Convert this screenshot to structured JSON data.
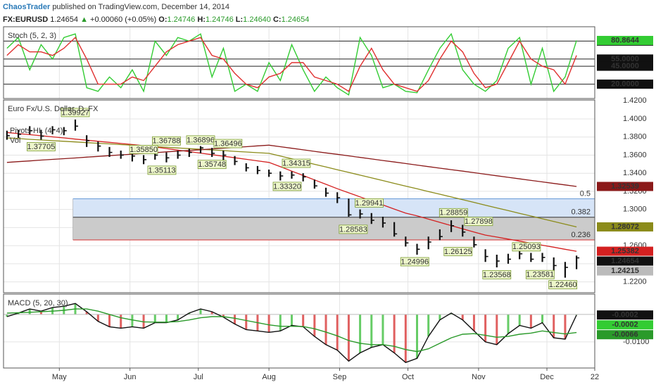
{
  "header": {
    "author": "ChaosTrader",
    "published": "published on TradingView.com, December 14, 2014",
    "symbol": "FX:EURUSD",
    "price": "1.24654",
    "change": "+0.00060 (+0.05%)",
    "ohlc": [
      {
        "key": "O:",
        "value": "1.24746"
      },
      {
        "key": "H:",
        "value": "1.24746"
      },
      {
        "key": "L:",
        "value": "1.24640"
      },
      {
        "key": "C:",
        "value": "1.24654"
      }
    ]
  },
  "chart_data": [
    {
      "type": "line",
      "title": "Stoch (5, 2, 3)",
      "x": [
        98,
        103,
        108,
        113,
        118,
        123,
        128,
        133,
        138,
        143,
        148,
        153,
        158,
        163,
        168,
        173,
        178,
        183,
        188,
        193,
        198,
        203,
        208,
        213,
        218,
        223,
        228,
        233,
        238,
        243,
        248,
        253,
        258,
        263,
        268,
        273,
        278,
        283,
        288,
        293,
        298,
        303,
        308,
        313,
        318,
        323,
        328,
        333,
        338,
        343,
        348
      ],
      "xlim": [
        96.5,
        356
      ],
      "ylim": [
        0,
        100
      ],
      "grid_color": "#222",
      "tick_box": true,
      "yticks": [
        {
          "value": 80,
          "label": "80.0000"
        },
        {
          "value": 55,
          "label": "55.0000"
        },
        {
          "value": 45,
          "label": "45.0000"
        },
        {
          "value": 20,
          "label": "20.0000"
        }
      ],
      "series": [
        {
          "color": "#33cc33",
          "values": [
            70,
            85,
            40,
            75,
            55,
            85,
            90,
            15,
            10,
            30,
            15,
            40,
            10,
            80,
            60,
            85,
            80,
            90,
            30,
            70,
            10,
            20,
            10,
            50,
            25,
            75,
            40,
            10,
            30,
            15,
            5,
            85,
            60,
            15,
            20,
            10,
            8,
            40,
            70,
            90,
            40,
            20,
            10,
            25,
            70,
            85,
            20,
            70,
            10,
            30,
            80.8644
          ]
        },
        {
          "color": "#e03030",
          "values": [
            60,
            75,
            65,
            65,
            60,
            70,
            85,
            55,
            20,
            20,
            20,
            30,
            25,
            45,
            65,
            75,
            80,
            85,
            60,
            55,
            35,
            20,
            15,
            30,
            35,
            50,
            50,
            30,
            25,
            20,
            10,
            45,
            70,
            40,
            20,
            15,
            10,
            25,
            55,
            80,
            65,
            35,
            15,
            20,
            50,
            80,
            55,
            45,
            40,
            20,
            60
          ]
        }
      ],
      "last_labels": [
        {
          "value": 80.8644,
          "label": "80.8644",
          "color": "#33cc33"
        }
      ]
    },
    {
      "type": "ohlc",
      "title": "Euro Fx/U.S. Dollar, D, FX",
      "legend_lines": [
        "Pivots HL (4, 4)",
        "Vol"
      ],
      "x": [
        98,
        103,
        108,
        113,
        118,
        123,
        128,
        133,
        138,
        143,
        148,
        153,
        158,
        163,
        168,
        173,
        178,
        183,
        188,
        193,
        198,
        203,
        208,
        213,
        218,
        223,
        228,
        233,
        238,
        243,
        248,
        253,
        258,
        263,
        268,
        273,
        278,
        283,
        288,
        293,
        298,
        303,
        308,
        313,
        318,
        323,
        328,
        333,
        338,
        343,
        348
      ],
      "xlim": [
        96.5,
        356
      ],
      "ylim": [
        1.208,
        1.421
      ],
      "grid_color": "#e4e4e4",
      "tick_box": false,
      "color": "#111",
      "high": [
        1.387,
        1.388,
        1.392,
        1.388,
        1.392,
        1.391,
        1.3993,
        1.382,
        1.375,
        1.369,
        1.365,
        1.364,
        1.36,
        1.365,
        1.363,
        1.365,
        1.367,
        1.37,
        1.368,
        1.365,
        1.359,
        1.351,
        1.348,
        1.344,
        1.342,
        1.342,
        1.34,
        1.333,
        1.324,
        1.319,
        1.312,
        1.3,
        1.296,
        1.292,
        1.286,
        1.27,
        1.262,
        1.27,
        1.278,
        1.288,
        1.283,
        1.27,
        1.256,
        1.25,
        1.251,
        1.256,
        1.252,
        1.252,
        1.247,
        1.242,
        1.249
      ],
      "low": [
        1.377,
        1.379,
        1.383,
        1.377,
        1.383,
        1.382,
        1.387,
        1.369,
        1.364,
        1.358,
        1.356,
        1.353,
        1.35,
        1.355,
        1.352,
        1.356,
        1.358,
        1.362,
        1.358,
        1.354,
        1.349,
        1.342,
        1.339,
        1.336,
        1.332,
        1.334,
        1.331,
        1.323,
        1.314,
        1.307,
        1.292,
        1.29,
        1.284,
        1.28,
        1.27,
        1.259,
        1.25,
        1.256,
        1.266,
        1.275,
        1.27,
        1.258,
        1.242,
        1.236,
        1.24,
        1.245,
        1.242,
        1.242,
        1.232,
        1.2246,
        1.234
      ],
      "close": [
        1.3815,
        1.383,
        1.387,
        1.381,
        1.388,
        1.387,
        1.392,
        1.376,
        1.37,
        1.363,
        1.36,
        1.359,
        1.355,
        1.36,
        1.357,
        1.36,
        1.363,
        1.368,
        1.362,
        1.36,
        1.353,
        1.346,
        1.343,
        1.34,
        1.337,
        1.338,
        1.336,
        1.326,
        1.318,
        1.313,
        1.294,
        1.295,
        1.288,
        1.285,
        1.273,
        1.263,
        1.256,
        1.264,
        1.27,
        1.282,
        1.275,
        1.261,
        1.248,
        1.243,
        1.245,
        1.251,
        1.245,
        1.247,
        1.238,
        1.236,
        1.2465
      ],
      "series": [
        {
          "color": "#d42020",
          "values": [
            1.385,
            1.3838,
            1.3826,
            1.3814,
            1.3802,
            1.379,
            1.3777,
            1.3765,
            1.3753,
            1.3741,
            1.3729,
            1.3717,
            1.3705,
            1.369,
            1.3673,
            1.3656,
            1.3639,
            1.3622,
            1.3605,
            1.3588,
            1.3571,
            1.3554,
            1.3537,
            1.352,
            1.3472,
            1.3423,
            1.3375,
            1.3326,
            1.3278,
            1.3229,
            1.3184,
            1.3139,
            1.3094,
            1.3049,
            1.3004,
            1.2959,
            1.2929,
            1.2893,
            1.2857,
            1.2822,
            1.2786,
            1.2751,
            1.2717,
            1.2695,
            1.2672,
            1.265,
            1.2627,
            1.2605,
            1.2583,
            1.256,
            1.2538
          ]
        },
        {
          "color": "#8b8b1a",
          "values": [
            1.379,
            1.3783,
            1.3775,
            1.3768,
            1.376,
            1.3753,
            1.3746,
            1.3738,
            1.3731,
            1.3724,
            1.3716,
            1.3709,
            1.3701,
            1.3694,
            1.3687,
            1.3679,
            1.3672,
            1.3664,
            1.3657,
            1.365,
            1.3642,
            1.3635,
            1.3627,
            1.362,
            1.359,
            1.356,
            1.353,
            1.3499,
            1.3469,
            1.3439,
            1.3409,
            1.3379,
            1.3349,
            1.3319,
            1.3288,
            1.3258,
            1.3228,
            1.3198,
            1.3168,
            1.3138,
            1.3108,
            1.3078,
            1.3047,
            1.3017,
            1.2987,
            1.2957,
            1.2927,
            1.2897,
            1.2867,
            1.2837,
            1.2807
          ]
        },
        {
          "color": "#8b1a1a",
          "values": [
            1.352,
            1.3528,
            1.3536,
            1.3545,
            1.3553,
            1.3561,
            1.3569,
            1.3578,
            1.3586,
            1.3594,
            1.3603,
            1.3611,
            1.3619,
            1.3627,
            1.3636,
            1.3644,
            1.3652,
            1.366,
            1.3669,
            1.3677,
            1.3685,
            1.3693,
            1.3702,
            1.371,
            1.3693,
            1.3676,
            1.3659,
            1.3642,
            1.3625,
            1.3609,
            1.3592,
            1.3575,
            1.3558,
            1.3541,
            1.3524,
            1.3507,
            1.349,
            1.3473,
            1.3456,
            1.344,
            1.3423,
            1.3406,
            1.3389,
            1.3372,
            1.3355,
            1.3338,
            1.3321,
            1.3304,
            1.3287,
            1.3271,
            1.3254
          ]
        }
      ],
      "level_start": 127,
      "levels": [
        {
          "label": "0.5",
          "value": 1.3118,
          "color": "#6a9bd8",
          "band": "#d6e4f7"
        },
        {
          "label": "0.382",
          "value": 1.2914,
          "color": "#333333",
          "band": "#cbcbcb"
        },
        {
          "label": "0.236",
          "value": 1.2663,
          "color": "#d33333"
        }
      ],
      "annotations": [
        {
          "x": 128,
          "value": 1.3993,
          "label": "1.39927"
        },
        {
          "x": 113,
          "value": 1.3771,
          "label": "1.37705"
        },
        {
          "x": 158,
          "value": 1.3585,
          "label": "1.35850"
        },
        {
          "x": 168,
          "value": 1.3679,
          "label": "1.36788"
        },
        {
          "x": 166,
          "value": 1.3511,
          "label": "1.35113"
        },
        {
          "x": 183,
          "value": 1.369,
          "label": "1.36896"
        },
        {
          "x": 195,
          "value": 1.365,
          "label": "1.36496"
        },
        {
          "x": 188,
          "value": 1.3575,
          "label": "1.35748"
        },
        {
          "x": 225,
          "value": 1.3432,
          "label": "1.34315"
        },
        {
          "x": 221,
          "value": 1.3332,
          "label": "1.33320"
        },
        {
          "x": 257,
          "value": 1.2994,
          "label": "1.29941"
        },
        {
          "x": 250,
          "value": 1.2858,
          "label": "1.28583"
        },
        {
          "x": 294,
          "value": 1.2886,
          "label": "1.28859"
        },
        {
          "x": 305,
          "value": 1.279,
          "label": "1.27898"
        },
        {
          "x": 296,
          "value": 1.2613,
          "label": "1.26125"
        },
        {
          "x": 277,
          "value": 1.25,
          "label": "1.24996"
        },
        {
          "x": 326,
          "value": 1.2509,
          "label": "1.25093"
        },
        {
          "x": 313,
          "value": 1.2357,
          "label": "1.23568"
        },
        {
          "x": 332,
          "value": 1.2358,
          "label": "1.23581"
        },
        {
          "x": 342,
          "value": 1.2246,
          "label": "1.22460"
        }
      ],
      "yticks": [
        {
          "value": 1.22,
          "label": "1.2200"
        },
        {
          "value": 1.24,
          "label": "1.2400"
        },
        {
          "value": 1.26,
          "label": "1.2600"
        },
        {
          "value": 1.28,
          "label": "1.2800"
        },
        {
          "value": 1.3,
          "label": "1.3000"
        },
        {
          "value": 1.32,
          "label": "1.3200"
        },
        {
          "value": 1.34,
          "label": "1.3400"
        },
        {
          "value": 1.36,
          "label": "1.3600"
        },
        {
          "value": 1.38,
          "label": "1.3800"
        },
        {
          "value": 1.4,
          "label": "1.4000"
        },
        {
          "value": 1.42,
          "label": "1.4200"
        }
      ],
      "last_labels": [
        {
          "value": 1.32539,
          "label": "1.32539",
          "color": "#8b1a1a"
        },
        {
          "value": 1.28072,
          "label": "1.28072",
          "color": "#8b8b1a"
        },
        {
          "value": 1.25382,
          "label": "1.25382",
          "color": "#d42020"
        },
        {
          "value": 1.24654,
          "label": "1.24654",
          "color": "#111111"
        },
        {
          "value": 1.24215,
          "label": "1.24215",
          "color": "#bbbbbb"
        }
      ]
    },
    {
      "type": "line",
      "title": "MACD (5, 20, 30)",
      "x": [
        98,
        103,
        108,
        113,
        118,
        123,
        128,
        133,
        138,
        143,
        148,
        153,
        158,
        163,
        168,
        173,
        178,
        183,
        188,
        193,
        198,
        203,
        208,
        213,
        218,
        223,
        228,
        233,
        238,
        243,
        248,
        253,
        258,
        263,
        268,
        273,
        278,
        283,
        288,
        293,
        298,
        303,
        308,
        313,
        318,
        323,
        328,
        333,
        338,
        343,
        348
      ],
      "xlim": [
        96.5,
        356
      ],
      "ylim": [
        -0.0195,
        0.0074
      ],
      "grid_color": "#e4e4e4",
      "tick_box": false,
      "xticks": [
        {
          "value": 121,
          "label": "May"
        },
        {
          "value": 152,
          "label": "Jun"
        },
        {
          "value": 182,
          "label": "Jul"
        },
        {
          "value": 213,
          "label": "Aug"
        },
        {
          "value": 244,
          "label": "Sep"
        },
        {
          "value": 274,
          "label": "Oct"
        },
        {
          "value": 305,
          "label": "Nov"
        },
        {
          "value": 335,
          "label": "Dec"
        },
        {
          "value": 356,
          "label": "22"
        }
      ],
      "yticks": [
        {
          "value": -0.01,
          "label": "-0.0100"
        }
      ],
      "series": [
        {
          "color": "#111111",
          "histogram": true,
          "values": [
            -0.0008,
            0.0005,
            0.002,
            0.0012,
            0.0025,
            0.003,
            0.004,
            0.001,
            -0.0025,
            -0.0045,
            -0.005,
            -0.0045,
            -0.005,
            -0.003,
            -0.003,
            -0.002,
            0.0005,
            0.002,
            0.001,
            -0.001,
            -0.0035,
            -0.0055,
            -0.006,
            -0.0065,
            -0.006,
            -0.004,
            -0.0045,
            -0.008,
            -0.011,
            -0.013,
            -0.017,
            -0.014,
            -0.012,
            -0.011,
            -0.014,
            -0.0175,
            -0.016,
            -0.008,
            -0.002,
            0.0005,
            -0.002,
            -0.006,
            -0.01,
            -0.011,
            -0.007,
            -0.004,
            -0.005,
            -0.003,
            -0.0085,
            -0.009,
            -0.0002
          ]
        },
        {
          "color": "#2a9a2a",
          "values": [
            0.0005,
            0.0006,
            0.0008,
            0.001,
            0.0012,
            0.0015,
            0.002,
            0.002,
            0.0012,
            0,
            -0.0012,
            -0.002,
            -0.0027,
            -0.0028,
            -0.0028,
            -0.0026,
            -0.002,
            -0.0012,
            -0.0008,
            -0.0008,
            -0.0014,
            -0.0022,
            -0.003,
            -0.0038,
            -0.0043,
            -0.0043,
            -0.0044,
            -0.0052,
            -0.0064,
            -0.0078,
            -0.0095,
            -0.0105,
            -0.011,
            -0.011,
            -0.0116,
            -0.0128,
            -0.0135,
            -0.0125,
            -0.0105,
            -0.0085,
            -0.0072,
            -0.007,
            -0.0076,
            -0.0083,
            -0.008,
            -0.0072,
            -0.0068,
            -0.006,
            -0.0066,
            -0.0071,
            -0.0066
          ]
        }
      ],
      "last_labels": [
        {
          "value": -0.0002,
          "label": "-0.0002",
          "color": "#111111"
        },
        {
          "value": -0.0002,
          "label": "-0.0002",
          "color": "#33cc33"
        },
        {
          "value": -0.0066,
          "label": "-0.0066",
          "color": "#2a9a2a"
        }
      ]
    }
  ]
}
